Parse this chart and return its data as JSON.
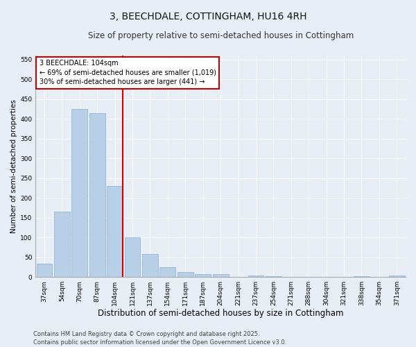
{
  "title": "3, BEECHDALE, COTTINGHAM, HU16 4RH",
  "subtitle": "Size of property relative to semi-detached houses in Cottingham",
  "xlabel": "Distribution of semi-detached houses by size in Cottingham",
  "ylabel": "Number of semi-detached properties",
  "categories": [
    "37sqm",
    "54sqm",
    "70sqm",
    "87sqm",
    "104sqm",
    "121sqm",
    "137sqm",
    "154sqm",
    "171sqm",
    "187sqm",
    "204sqm",
    "221sqm",
    "237sqm",
    "254sqm",
    "271sqm",
    "288sqm",
    "304sqm",
    "321sqm",
    "338sqm",
    "354sqm",
    "371sqm"
  ],
  "values": [
    33,
    165,
    425,
    415,
    230,
    100,
    58,
    25,
    12,
    8,
    8,
    0,
    3,
    2,
    1,
    1,
    0,
    0,
    2,
    0,
    3
  ],
  "bar_color": "#b8cfe8",
  "bar_edge_color": "#8aadd4",
  "red_line_index": 4,
  "annotation_line1": "3 BEECHDALE: 104sqm",
  "annotation_line2": "← 69% of semi-detached houses are smaller (1,019)",
  "annotation_line3": "30% of semi-detached houses are larger (441) →",
  "annotation_box_color": "#ffffff",
  "annotation_box_edge_color": "#cc0000",
  "red_line_color": "#cc0000",
  "ylim": [
    0,
    560
  ],
  "yticks": [
    0,
    50,
    100,
    150,
    200,
    250,
    300,
    350,
    400,
    450,
    500,
    550
  ],
  "footer": "Contains HM Land Registry data © Crown copyright and database right 2025.\nContains public sector information licensed under the Open Government Licence v3.0.",
  "bg_color": "#e8eef5",
  "plot_bg_color": "#e8eef5",
  "grid_color": "#ffffff",
  "title_fontsize": 10,
  "subtitle_fontsize": 8.5,
  "xlabel_fontsize": 8.5,
  "ylabel_fontsize": 7.5,
  "tick_fontsize": 6.5,
  "annotation_fontsize": 7,
  "footer_fontsize": 6
}
